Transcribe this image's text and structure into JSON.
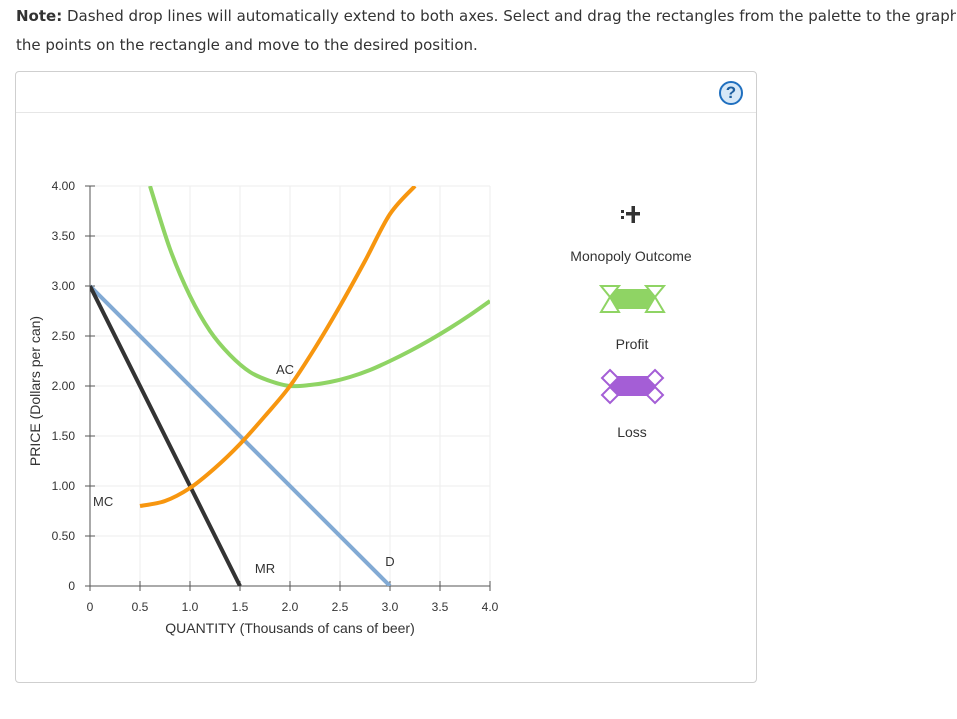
{
  "note": {
    "label": "Note:",
    "line1": " Dashed drop lines will automatically extend to both axes. Select and drag the rectangles from the palette to the graph",
    "line2": "the points on the rectangle and move to the desired position."
  },
  "help": {
    "label": "?"
  },
  "palette": {
    "monopoly_outcome_label": "Monopoly Outcome",
    "profit_label": "Profit",
    "loss_label": "Loss",
    "profit_color": "#8fd464",
    "loss_color": "#a45ed6"
  },
  "chart_data": {
    "type": "line",
    "xlabel": "QUANTITY (Thousands of cans of beer)",
    "ylabel": "PRICE (Dollars per can)",
    "xlim": [
      0,
      4.0
    ],
    "ylim": [
      0,
      4.0
    ],
    "x_ticks": [
      0,
      0.5,
      1.0,
      1.5,
      2.0,
      2.5,
      3.0,
      3.5,
      4.0
    ],
    "x_tick_labels": [
      "0",
      "0.5",
      "1.0",
      "1.5",
      "2.0",
      "2.5",
      "3.0",
      "3.5",
      "4.0"
    ],
    "y_ticks": [
      0,
      0.5,
      1.0,
      1.5,
      2.0,
      2.5,
      3.0,
      3.5,
      4.0
    ],
    "y_tick_labels": [
      "0",
      "0.50",
      "1.00",
      "1.50",
      "2.00",
      "2.50",
      "3.00",
      "3.50",
      "4.00"
    ],
    "grid": true,
    "series": [
      {
        "name": "D",
        "color": "#82aad4",
        "x": [
          0,
          3.0
        ],
        "y": [
          3.0,
          0
        ]
      },
      {
        "name": "MR",
        "color": "#333333",
        "x": [
          0,
          1.5
        ],
        "y": [
          3.0,
          0
        ]
      },
      {
        "name": "MC",
        "color": "#f7960f",
        "x": [
          0.5,
          0.75,
          1.0,
          1.25,
          1.5,
          1.75,
          2.0,
          2.25,
          2.5,
          2.75,
          3.0,
          3.25
        ],
        "y": [
          0.8,
          0.85,
          0.98,
          1.18,
          1.42,
          1.7,
          2.0,
          2.38,
          2.8,
          3.25,
          3.72,
          4.0
        ]
      },
      {
        "name": "AC",
        "color": "#8fd464",
        "x": [
          0.6,
          0.8,
          1.0,
          1.2,
          1.4,
          1.6,
          1.8,
          2.0,
          2.2,
          2.4,
          2.6,
          2.8,
          3.0,
          3.2,
          3.4,
          3.6,
          3.8,
          4.0
        ],
        "y": [
          4.0,
          3.37,
          2.9,
          2.55,
          2.31,
          2.14,
          2.05,
          2.0,
          2.01,
          2.04,
          2.09,
          2.16,
          2.25,
          2.35,
          2.46,
          2.58,
          2.71,
          2.85
        ]
      }
    ],
    "annotations": [
      {
        "text": "MC",
        "x": 0.03,
        "y": 0.8
      },
      {
        "text": "AC",
        "x": 1.95,
        "y": 2.12
      },
      {
        "text": "MR",
        "x": 1.75,
        "y": 0.13
      },
      {
        "text": "D",
        "x": 3.0,
        "y": 0.2
      }
    ]
  }
}
